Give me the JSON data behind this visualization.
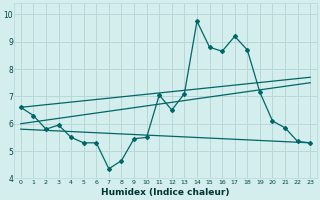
{
  "xlabel": "Humidex (Indice chaleur)",
  "bg_color": "#d4eeee",
  "grid_color": "#b8d8d8",
  "line_color": "#006666",
  "xlim": [
    -0.5,
    23.5
  ],
  "ylim": [
    4,
    10.4
  ],
  "xticks": [
    0,
    1,
    2,
    3,
    4,
    5,
    6,
    7,
    8,
    9,
    10,
    11,
    12,
    13,
    14,
    15,
    16,
    17,
    18,
    19,
    20,
    21,
    22,
    23
  ],
  "yticks": [
    4,
    5,
    6,
    7,
    8,
    9,
    10
  ],
  "series1_x": [
    0,
    1,
    2,
    3,
    4,
    5,
    6,
    7,
    8,
    9,
    10,
    11,
    12,
    13,
    14,
    15,
    16,
    17,
    18,
    19,
    20,
    21,
    22,
    23
  ],
  "series1_y": [
    6.6,
    6.3,
    5.8,
    5.95,
    5.5,
    5.3,
    5.3,
    4.35,
    4.65,
    5.45,
    5.5,
    7.05,
    6.5,
    7.1,
    9.75,
    8.8,
    8.65,
    9.2,
    8.7,
    7.15,
    6.1,
    5.85,
    5.35,
    5.3
  ],
  "series2_x": [
    0,
    23
  ],
  "series2_y": [
    6.6,
    7.7
  ],
  "series3_x": [
    0,
    23
  ],
  "series3_y": [
    6.0,
    7.5
  ],
  "series4_x": [
    0,
    23
  ],
  "series4_y": [
    5.8,
    5.3
  ]
}
